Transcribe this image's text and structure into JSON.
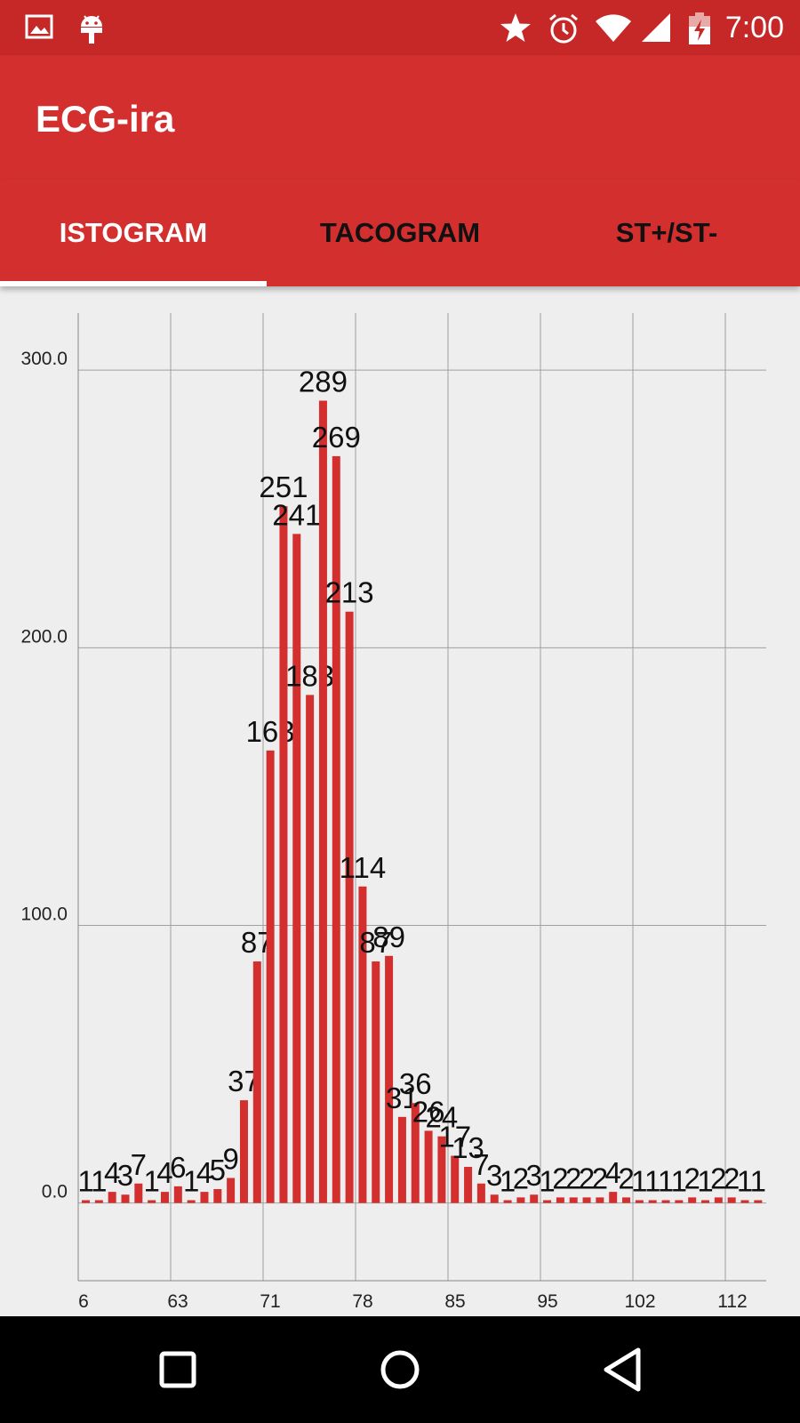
{
  "status_bar": {
    "time": "7:00",
    "icons": [
      "image-notification-icon",
      "android-debug-icon",
      "star-icon",
      "alarm-icon",
      "wifi-icon",
      "cell-signal-icon",
      "battery-charging-icon"
    ]
  },
  "app_bar": {
    "title": "ECG-ira"
  },
  "tabs": [
    {
      "label": "ISTOGRAM",
      "active": true
    },
    {
      "label": "TACOGRAM",
      "active": false
    },
    {
      "label": "ST+/ST-",
      "active": false
    }
  ],
  "colors": {
    "status_bar": "#c62828",
    "app_bar": "#d32f2f",
    "bar": "#d32f2f",
    "background": "#eeeeee"
  },
  "chart_data": {
    "type": "bar",
    "y_tick_labels": [
      "0.0",
      "100.0",
      "200.0",
      "300.0"
    ],
    "ylim": [
      -28,
      318
    ],
    "x_tick_labels": [
      "6",
      "63",
      "71",
      "78",
      "85",
      "95",
      "102",
      "112"
    ],
    "values": [
      1,
      1,
      4,
      3,
      7,
      1,
      4,
      6,
      1,
      4,
      5,
      9,
      37,
      87,
      163,
      251,
      241,
      183,
      289,
      269,
      213,
      114,
      87,
      89,
      31,
      36,
      26,
      24,
      17,
      13,
      7,
      3,
      1,
      2,
      3,
      1,
      2,
      2,
      2,
      2,
      4,
      2,
      1,
      1,
      1,
      1,
      2,
      1,
      2,
      2,
      1,
      1
    ],
    "grid": true,
    "bar_color": "#d32f2f"
  }
}
